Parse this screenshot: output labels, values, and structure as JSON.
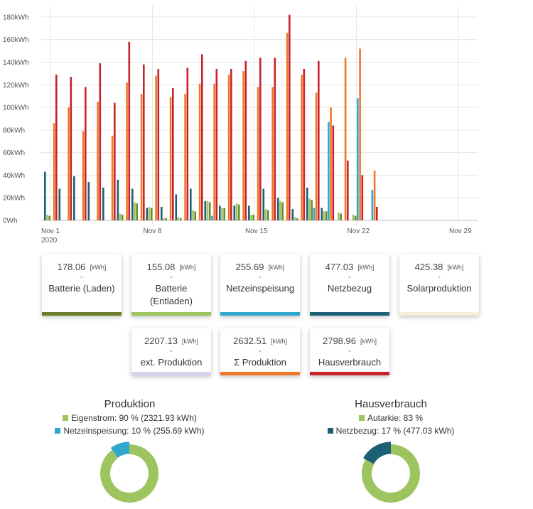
{
  "chart_data": {
    "type": "bar",
    "y_unit": "kWh",
    "ylim": [
      0,
      190
    ],
    "y_ticks": [
      "0Wh",
      "20kWh",
      "40kWh",
      "60kWh",
      "80kWh",
      "100kWh",
      "120kWh",
      "140kWh",
      "160kWh",
      "180kWh"
    ],
    "y_tick_values": [
      0,
      20,
      40,
      60,
      80,
      100,
      120,
      140,
      160,
      180
    ],
    "x_ticks": [
      {
        "day": 1,
        "label": "Nov 1",
        "sub": "2020"
      },
      {
        "day": 8,
        "label": "Nov 8",
        "sub": ""
      },
      {
        "day": 15,
        "label": "Nov 15",
        "sub": ""
      },
      {
        "day": 22,
        "label": "Nov 22",
        "sub": ""
      },
      {
        "day": 29,
        "label": "Nov 29",
        "sub": ""
      }
    ],
    "days": [
      1,
      2,
      3,
      4,
      5,
      6,
      7,
      8,
      9,
      10,
      11,
      12,
      13,
      14,
      15,
      16,
      17,
      18,
      19,
      20,
      21,
      22,
      23
    ],
    "grid": true,
    "series": [
      {
        "color": "#1d5f74",
        "values": [
          43,
          28,
          39,
          34,
          29,
          36,
          28,
          11,
          12,
          23,
          28,
          17,
          13,
          13,
          13,
          28,
          20,
          10,
          29,
          11,
          0,
          0,
          0
        ]
      },
      {
        "color": "#9dc45f",
        "values": [
          5,
          0,
          0,
          0,
          0,
          6,
          16,
          12,
          2,
          3,
          9,
          17,
          11,
          15,
          5,
          10,
          17,
          3,
          19,
          8,
          7,
          5,
          0
        ]
      },
      {
        "color": "#6a8a2e",
        "values": [
          4,
          0,
          0,
          0,
          0,
          5,
          15,
          11,
          2,
          2,
          8,
          16,
          11,
          14,
          5,
          9,
          16,
          2,
          18,
          8,
          6,
          4,
          0
        ]
      },
      {
        "color": "#2ea8cf",
        "values": [
          0,
          0,
          0,
          0,
          0,
          0,
          0,
          0,
          0,
          0,
          0,
          4,
          0,
          0,
          0,
          0,
          0,
          0,
          11,
          87,
          0,
          108,
          27
        ]
      },
      {
        "color": "#f07727",
        "values": [
          86,
          100,
          79,
          105,
          75,
          122,
          112,
          128,
          109,
          112,
          121,
          121,
          129,
          132,
          118,
          118,
          166,
          129,
          113,
          100,
          144,
          152,
          44
        ]
      },
      {
        "color": "#c9222a",
        "values": [
          129,
          127,
          118,
          139,
          104,
          158,
          138,
          134,
          117,
          135,
          147,
          134,
          134,
          141,
          144,
          144,
          182,
          134,
          141,
          84,
          53,
          40,
          12
        ]
      }
    ]
  },
  "cards_row1": [
    {
      "value": "178.06",
      "unit": "[kWh]",
      "dash": "-",
      "label": "Batterie (Laden)",
      "color": "#6a7d2a"
    },
    {
      "value": "155.08",
      "unit": "[kWh]",
      "dash": "-",
      "label": "Batterie (Entladen)",
      "color": "#9dc45f"
    },
    {
      "value": "255.69",
      "unit": "[kWh]",
      "dash": "-",
      "label": "Netzeinspeisung",
      "color": "#2ea8cf"
    },
    {
      "value": "477.03",
      "unit": "[kWh]",
      "dash": "-",
      "label": "Netzbezug",
      "color": "#1d5f74"
    },
    {
      "value": "425.38",
      "unit": "[kWh]",
      "dash": "-",
      "label": "Solarproduktion",
      "color": "#f5f0d8"
    }
  ],
  "cards_row2": [
    {
      "value": "2207.13",
      "unit": "[kWh]",
      "dash": "-",
      "label": "ext. Produktion",
      "color": "#d9d0ee"
    },
    {
      "value": "2632.51",
      "unit": "[kWh]",
      "dash": "-",
      "label": "Σ Produktion",
      "color": "#f07727"
    },
    {
      "value": "2798.96",
      "unit": "[kWh]",
      "dash": "-",
      "label": "Hausverbrauch",
      "color": "#c9222a"
    }
  ],
  "donuts": [
    {
      "title": "Produktion",
      "legend": [
        {
          "text": "Eigenstrom: 90 % (2321.93 kWh)",
          "color": "#9dc45f",
          "percent": 90
        },
        {
          "text": "Netzeinspeisung: 10 % (255.69 kWh)",
          "color": "#2ea8cf",
          "percent": 10
        }
      ]
    },
    {
      "title": "Hausverbrauch",
      "legend": [
        {
          "text": "Autarkie: 83 %",
          "color": "#9dc45f",
          "percent": 83
        },
        {
          "text": "Netzbezug: 17 % (477.03 kWh)",
          "color": "#1d5f74",
          "percent": 17
        }
      ]
    }
  ]
}
